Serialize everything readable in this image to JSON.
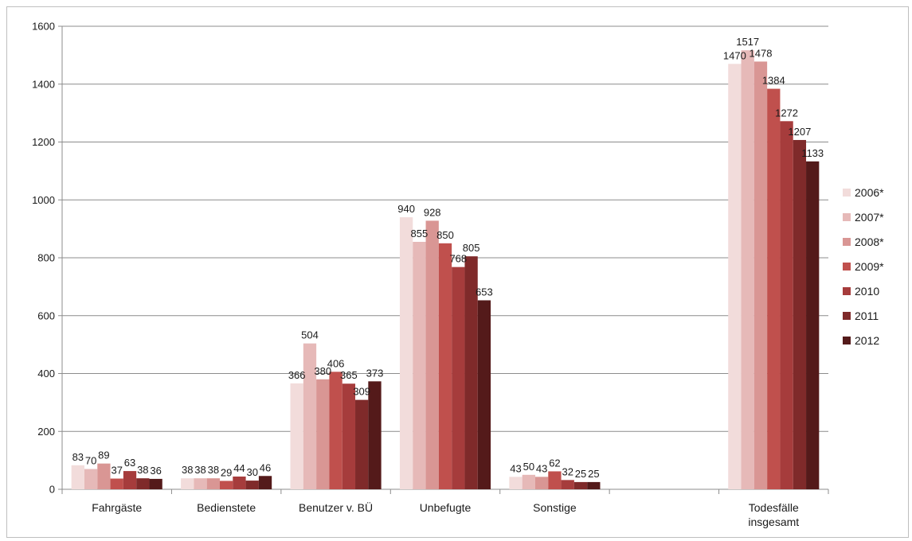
{
  "chart_data": {
    "type": "bar",
    "title": "",
    "xlabel": "",
    "ylabel": "",
    "ylim": [
      0,
      1600
    ],
    "yticks": [
      0,
      200,
      400,
      600,
      800,
      1000,
      1200,
      1400,
      1600
    ],
    "grid": true,
    "legend_position": "right",
    "categories": [
      [
        "Fahrgäste"
      ],
      [
        "Bedienstete"
      ],
      [
        "Benutzer v. BÜ"
      ],
      [
        "Unbefugte"
      ],
      [
        "Sonstige"
      ],
      [
        ""
      ],
      [
        "Todesfälle",
        "insgesamt"
      ]
    ],
    "series": [
      {
        "name": "2006*",
        "color": "#f2dcdb",
        "values": [
          83,
          38,
          366,
          940,
          43,
          null,
          1470
        ]
      },
      {
        "name": "2007*",
        "color": "#e6b9b8",
        "values": [
          70,
          38,
          504,
          855,
          50,
          null,
          1517
        ]
      },
      {
        "name": "2008*",
        "color": "#d99694",
        "values": [
          89,
          38,
          380,
          928,
          43,
          null,
          1478
        ]
      },
      {
        "name": "2009*",
        "color": "#c0504d",
        "values": [
          37,
          29,
          406,
          850,
          62,
          null,
          1384
        ]
      },
      {
        "name": "2010",
        "color": "#a63c3c",
        "values": [
          63,
          44,
          365,
          768,
          32,
          null,
          1272
        ]
      },
      {
        "name": "2011",
        "color": "#7f2a2a",
        "values": [
          38,
          30,
          309,
          805,
          25,
          null,
          1207
        ]
      },
      {
        "name": "2012",
        "color": "#541a1a",
        "values": [
          36,
          46,
          373,
          653,
          25,
          null,
          1133
        ]
      }
    ]
  }
}
